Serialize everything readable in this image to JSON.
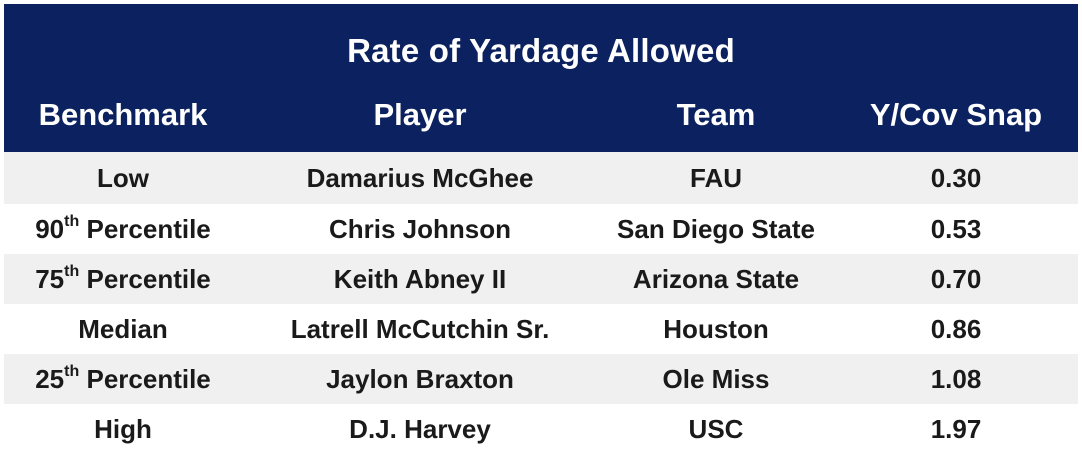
{
  "table": {
    "title": "Rate of Yardage Allowed",
    "headers": [
      "Benchmark",
      "Player",
      "Team",
      "Y/Cov Snap"
    ],
    "rows": [
      {
        "benchmark": "Low",
        "benchmark_sup": "",
        "benchmark_rest": "",
        "player": "Damarius McGhee",
        "team": "FAU",
        "value": "0.30"
      },
      {
        "benchmark": "90",
        "benchmark_sup": "th",
        "benchmark_rest": " Percentile",
        "player": "Chris Johnson",
        "team": "San Diego State",
        "value": "0.53"
      },
      {
        "benchmark": "75",
        "benchmark_sup": "th",
        "benchmark_rest": " Percentile",
        "player": "Keith Abney II",
        "team": "Arizona State",
        "value": "0.70"
      },
      {
        "benchmark": "Median",
        "benchmark_sup": "",
        "benchmark_rest": "",
        "player": "Latrell McCutchin Sr.",
        "team": "Houston",
        "value": "0.86"
      },
      {
        "benchmark": "25",
        "benchmark_sup": "th",
        "benchmark_rest": " Percentile",
        "player": "Jaylon Braxton",
        "team": "Ole Miss",
        "value": "1.08"
      },
      {
        "benchmark": "High",
        "benchmark_sup": "",
        "benchmark_rest": "",
        "player": "D.J. Harvey",
        "team": "USC",
        "value": "1.97"
      }
    ]
  },
  "colors": {
    "header_bg": "#0c2260",
    "header_text": "#ffffff",
    "row_shade": "#f0f0f0",
    "row_plain": "#ffffff"
  }
}
